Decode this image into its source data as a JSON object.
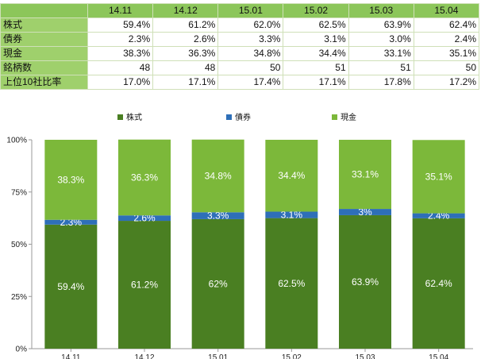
{
  "table": {
    "headers": [
      "14.11",
      "14.12",
      "15.01",
      "15.02",
      "15.03",
      "15.04"
    ],
    "rows": [
      {
        "label": "株式",
        "values": [
          "59.4%",
          "61.2%",
          "62.0%",
          "62.5%",
          "63.9%",
          "62.4%"
        ]
      },
      {
        "label": "債券",
        "values": [
          "2.3%",
          "2.6%",
          "3.3%",
          "3.1%",
          "3.0%",
          "2.4%"
        ]
      },
      {
        "label": "現金",
        "values": [
          "38.3%",
          "36.3%",
          "34.8%",
          "34.4%",
          "33.1%",
          "35.1%"
        ]
      },
      {
        "label": "銘柄数",
        "values": [
          "48",
          "48",
          "50",
          "51",
          "51",
          "50"
        ]
      },
      {
        "label": "上位10社比率",
        "values": [
          "17.0%",
          "17.1%",
          "17.4%",
          "17.1%",
          "17.8%",
          "17.2%"
        ]
      }
    ]
  },
  "colors": {
    "stock": "#4a7f22",
    "bond": "#2e6fb8",
    "cash": "#7cb83a",
    "table_header": "#8cc65a",
    "table_rowhead": "#9fd06c"
  },
  "chart_data": {
    "type": "bar",
    "stacked": true,
    "categories": [
      "14.11",
      "14.12",
      "15.01",
      "15.02",
      "15.03",
      "15.04"
    ],
    "series": [
      {
        "name": "株式",
        "values": [
          59.4,
          61.2,
          62.0,
          62.5,
          63.9,
          62.4
        ],
        "labels": [
          "59.4%",
          "61.2%",
          "62%",
          "62.5%",
          "63.9%",
          "62.4%"
        ]
      },
      {
        "name": "債券",
        "values": [
          2.3,
          2.6,
          3.3,
          3.1,
          3.0,
          2.4
        ],
        "labels": [
          "2.3%",
          "2.6%",
          "3.3%",
          "3.1%",
          "3%",
          "2.4%"
        ]
      },
      {
        "name": "現金",
        "values": [
          38.3,
          36.3,
          34.8,
          34.4,
          33.1,
          35.1
        ],
        "labels": [
          "38.3%",
          "36.3%",
          "34.8%",
          "34.4%",
          "33.1%",
          "35.1%"
        ]
      }
    ],
    "y_ticks": [
      "0%",
      "25%",
      "50%",
      "75%",
      "100%"
    ],
    "ylim": [
      0,
      100
    ],
    "legend_position": "top",
    "grid": false
  }
}
